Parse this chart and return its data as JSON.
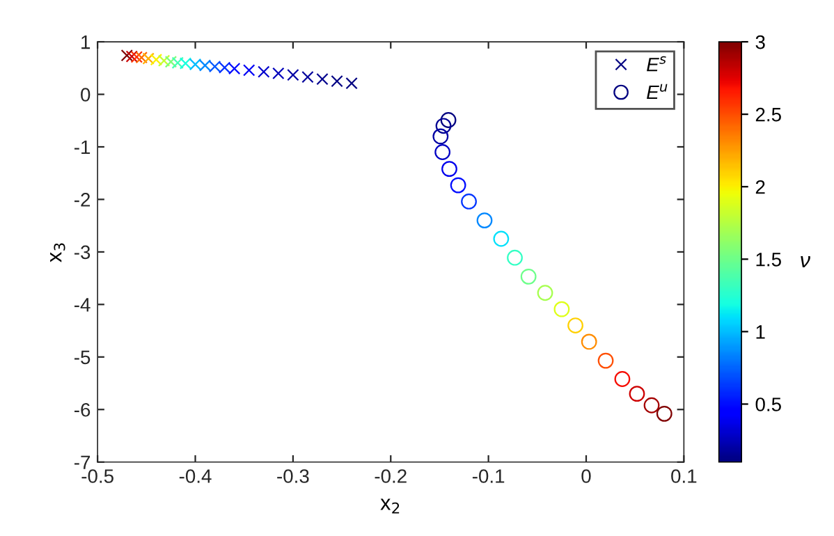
{
  "chart_data": {
    "type": "scatter",
    "xlabel": "x$_{2}$",
    "ylabel": "x$_{3}$",
    "clabel": "ν",
    "xlim": [
      -0.5,
      0.1
    ],
    "xticks": [
      -0.5,
      -0.4,
      -0.3,
      -0.2,
      -0.1,
      0,
      0.1
    ],
    "ylim": [
      -7,
      1
    ],
    "yticks": [
      -7,
      -6,
      -5,
      -4,
      -3,
      -2,
      -1,
      0,
      1
    ],
    "clim": [
      0.1,
      3
    ],
    "cticks": [
      0.5,
      1,
      1.5,
      2,
      2.5,
      3
    ],
    "legend": "top right",
    "grid": false,
    "series": [
      {
        "name": "E$^{s}$",
        "marker": "cross",
        "x": [
          -0.47,
          -0.465,
          -0.46,
          -0.455,
          -0.448,
          -0.44,
          -0.432,
          -0.425,
          -0.418,
          -0.41,
          -0.4,
          -0.39,
          -0.38,
          -0.37,
          -0.36,
          -0.345,
          -0.33,
          -0.315,
          -0.3,
          -0.285,
          -0.27,
          -0.255,
          -0.24
        ],
        "values": [
          0.74,
          0.72,
          0.71,
          0.7,
          0.68,
          0.66,
          0.64,
          0.62,
          0.6,
          0.59,
          0.57,
          0.55,
          0.53,
          0.51,
          0.49,
          0.46,
          0.43,
          0.4,
          0.37,
          0.33,
          0.29,
          0.25,
          0.21
        ],
        "colors": [
          "#800000",
          "#cd0000",
          "#ff2d00",
          "#ff6c00",
          "#ffae00",
          "#fbf100",
          "#c4ff33",
          "#7dff7a",
          "#43ffb4",
          "#19ffde",
          "#00bcff",
          "#0088ff",
          "#0058ff",
          "#0030ff",
          "#000cff",
          "#0000f6",
          "#0000cd",
          "#0000bb",
          "#0000a4",
          "#00009b",
          "#00008d",
          "#000084",
          "#000080"
        ]
      },
      {
        "name": "E$^{u}$",
        "marker": "circle",
        "x": [
          -0.141,
          -0.146,
          -0.149,
          -0.147,
          -0.14,
          -0.131,
          -0.12,
          -0.104,
          -0.087,
          -0.073,
          -0.059,
          -0.042,
          -0.025,
          -0.011,
          0.003,
          0.02,
          0.037,
          0.052,
          0.067,
          0.08
        ],
        "values": [
          -0.49,
          -0.6,
          -0.8,
          -1.1,
          -1.42,
          -1.73,
          -2.04,
          -2.4,
          -2.75,
          -3.11,
          -3.47,
          -3.78,
          -4.09,
          -4.4,
          -4.71,
          -5.07,
          -5.42,
          -5.7,
          -5.92,
          -6.08
        ],
        "colors": [
          "#000080",
          "#000092",
          "#0000a4",
          "#0000c4",
          "#0000ed",
          "#000cff",
          "#0034ff",
          "#0088ff",
          "#00e0fb",
          "#33ffc4",
          "#6dff8a",
          "#a7ff50",
          "#deff19",
          "#ffd000",
          "#ff8d00",
          "#ff4e00",
          "#f60b00",
          "#cd0000",
          "#a40000",
          "#800000"
        ]
      }
    ]
  }
}
